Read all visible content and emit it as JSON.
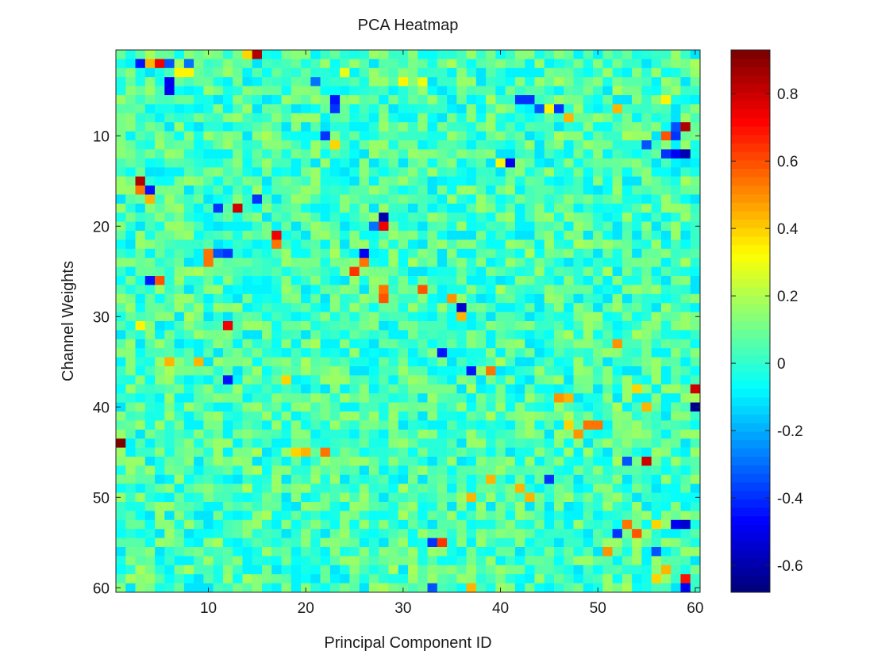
{
  "chart_data": {
    "type": "heatmap",
    "title": "PCA Heatmap",
    "xlabel": "Principal Component ID",
    "ylabel": "Channel Weights",
    "x_range": [
      1,
      60
    ],
    "y_range": [
      1,
      60
    ],
    "y_direction": "top-to-bottom",
    "x_ticks": [
      10,
      20,
      30,
      40,
      50,
      60
    ],
    "y_ticks": [
      10,
      20,
      30,
      40,
      50,
      60
    ],
    "colormap": "jet",
    "colorbar": {
      "position": "right",
      "range": [
        -0.68,
        0.93
      ],
      "levels": 64,
      "ticks": [
        -0.6,
        -0.4,
        -0.2,
        0,
        0.2,
        0.4,
        0.6,
        0.8
      ],
      "tick_labels": [
        "-0.6",
        "-0.4",
        "-0.2",
        "0",
        "0.2",
        "0.4",
        "0.6",
        "0.8"
      ]
    },
    "background_value_range": [
      -0.12,
      0.18
    ],
    "notable_cells": [
      {
        "x": 15,
        "y": 1,
        "value": 0.85
      },
      {
        "x": 14,
        "y": 1,
        "value": 0.4
      },
      {
        "x": 3,
        "y": 2,
        "value": -0.45
      },
      {
        "x": 4,
        "y": 2,
        "value": 0.45
      },
      {
        "x": 5,
        "y": 2,
        "value": 0.75
      },
      {
        "x": 6,
        "y": 2,
        "value": -0.35
      },
      {
        "x": 7,
        "y": 2,
        "value": 0.2
      },
      {
        "x": 8,
        "y": 2,
        "value": -0.3
      },
      {
        "x": 6,
        "y": 4,
        "value": -0.5
      },
      {
        "x": 7,
        "y": 3,
        "value": 0.35
      },
      {
        "x": 8,
        "y": 3,
        "value": 0.35
      },
      {
        "x": 6,
        "y": 5,
        "value": -0.5
      },
      {
        "x": 24,
        "y": 3,
        "value": 0.3
      },
      {
        "x": 30,
        "y": 4,
        "value": 0.35
      },
      {
        "x": 32,
        "y": 4,
        "value": 0.3
      },
      {
        "x": 21,
        "y": 4,
        "value": -0.3
      },
      {
        "x": 23,
        "y": 6,
        "value": -0.45
      },
      {
        "x": 23,
        "y": 7,
        "value": -0.4
      },
      {
        "x": 42,
        "y": 6,
        "value": -0.4
      },
      {
        "x": 43,
        "y": 6,
        "value": -0.4
      },
      {
        "x": 44,
        "y": 7,
        "value": -0.35
      },
      {
        "x": 45,
        "y": 7,
        "value": 0.35
      },
      {
        "x": 46,
        "y": 7,
        "value": -0.4
      },
      {
        "x": 47,
        "y": 8,
        "value": 0.45
      },
      {
        "x": 52,
        "y": 7,
        "value": 0.45
      },
      {
        "x": 57,
        "y": 6,
        "value": 0.35
      },
      {
        "x": 59,
        "y": 9,
        "value": 0.85
      },
      {
        "x": 58,
        "y": 9,
        "value": -0.35
      },
      {
        "x": 57,
        "y": 10,
        "value": 0.6
      },
      {
        "x": 58,
        "y": 10,
        "value": -0.4
      },
      {
        "x": 58,
        "y": 12,
        "value": -0.5
      },
      {
        "x": 59,
        "y": 12,
        "value": -0.6
      },
      {
        "x": 57,
        "y": 12,
        "value": -0.4
      },
      {
        "x": 55,
        "y": 11,
        "value": -0.35
      },
      {
        "x": 41,
        "y": 13,
        "value": -0.5
      },
      {
        "x": 40,
        "y": 13,
        "value": 0.35
      },
      {
        "x": 22,
        "y": 10,
        "value": -0.4
      },
      {
        "x": 23,
        "y": 11,
        "value": 0.4
      },
      {
        "x": 3,
        "y": 15,
        "value": 0.85
      },
      {
        "x": 3,
        "y": 16,
        "value": 0.55
      },
      {
        "x": 4,
        "y": 16,
        "value": -0.45
      },
      {
        "x": 4,
        "y": 17,
        "value": 0.45
      },
      {
        "x": 13,
        "y": 18,
        "value": 0.8
      },
      {
        "x": 11,
        "y": 18,
        "value": -0.4
      },
      {
        "x": 15,
        "y": 17,
        "value": -0.4
      },
      {
        "x": 28,
        "y": 19,
        "value": -0.6
      },
      {
        "x": 28,
        "y": 20,
        "value": 0.75
      },
      {
        "x": 27,
        "y": 20,
        "value": -0.3
      },
      {
        "x": 17,
        "y": 21,
        "value": 0.75
      },
      {
        "x": 17,
        "y": 22,
        "value": 0.55
      },
      {
        "x": 26,
        "y": 23,
        "value": -0.5
      },
      {
        "x": 26,
        "y": 24,
        "value": 0.55
      },
      {
        "x": 25,
        "y": 25,
        "value": 0.65
      },
      {
        "x": 10,
        "y": 23,
        "value": 0.55
      },
      {
        "x": 10,
        "y": 24,
        "value": 0.55
      },
      {
        "x": 11,
        "y": 23,
        "value": -0.35
      },
      {
        "x": 12,
        "y": 23,
        "value": -0.4
      },
      {
        "x": 4,
        "y": 26,
        "value": -0.45
      },
      {
        "x": 5,
        "y": 26,
        "value": 0.6
      },
      {
        "x": 28,
        "y": 27,
        "value": 0.55
      },
      {
        "x": 28,
        "y": 28,
        "value": 0.6
      },
      {
        "x": 32,
        "y": 27,
        "value": 0.6
      },
      {
        "x": 35,
        "y": 28,
        "value": 0.5
      },
      {
        "x": 36,
        "y": 29,
        "value": -0.55
      },
      {
        "x": 36,
        "y": 30,
        "value": 0.45
      },
      {
        "x": 12,
        "y": 31,
        "value": 0.75
      },
      {
        "x": 3,
        "y": 31,
        "value": 0.35
      },
      {
        "x": 34,
        "y": 34,
        "value": -0.45
      },
      {
        "x": 52,
        "y": 33,
        "value": 0.5
      },
      {
        "x": 6,
        "y": 35,
        "value": 0.45
      },
      {
        "x": 9,
        "y": 35,
        "value": 0.45
      },
      {
        "x": 12,
        "y": 37,
        "value": -0.45
      },
      {
        "x": 18,
        "y": 37,
        "value": 0.4
      },
      {
        "x": 37,
        "y": 36,
        "value": -0.45
      },
      {
        "x": 39,
        "y": 36,
        "value": 0.55
      },
      {
        "x": 60,
        "y": 38,
        "value": 0.8
      },
      {
        "x": 60,
        "y": 40,
        "value": -0.65
      },
      {
        "x": 54,
        "y": 38,
        "value": 0.4
      },
      {
        "x": 46,
        "y": 39,
        "value": 0.5
      },
      {
        "x": 47,
        "y": 39,
        "value": 0.45
      },
      {
        "x": 55,
        "y": 40,
        "value": 0.45
      },
      {
        "x": 49,
        "y": 42,
        "value": 0.55
      },
      {
        "x": 50,
        "y": 42,
        "value": 0.55
      },
      {
        "x": 48,
        "y": 43,
        "value": 0.5
      },
      {
        "x": 47,
        "y": 42,
        "value": 0.4
      },
      {
        "x": 1,
        "y": 44,
        "value": 0.93
      },
      {
        "x": 19,
        "y": 45,
        "value": 0.4
      },
      {
        "x": 20,
        "y": 45,
        "value": 0.45
      },
      {
        "x": 22,
        "y": 45,
        "value": 0.55
      },
      {
        "x": 55,
        "y": 46,
        "value": 0.8
      },
      {
        "x": 53,
        "y": 46,
        "value": -0.35
      },
      {
        "x": 39,
        "y": 48,
        "value": 0.45
      },
      {
        "x": 45,
        "y": 48,
        "value": -0.4
      },
      {
        "x": 42,
        "y": 49,
        "value": 0.45
      },
      {
        "x": 43,
        "y": 50,
        "value": 0.45
      },
      {
        "x": 37,
        "y": 50,
        "value": 0.45
      },
      {
        "x": 53,
        "y": 53,
        "value": 0.55
      },
      {
        "x": 54,
        "y": 54,
        "value": 0.6
      },
      {
        "x": 52,
        "y": 54,
        "value": -0.4
      },
      {
        "x": 58,
        "y": 53,
        "value": -0.5
      },
      {
        "x": 59,
        "y": 53,
        "value": -0.55
      },
      {
        "x": 56,
        "y": 53,
        "value": 0.4
      },
      {
        "x": 34,
        "y": 55,
        "value": 0.65
      },
      {
        "x": 33,
        "y": 55,
        "value": -0.4
      },
      {
        "x": 51,
        "y": 56,
        "value": 0.5
      },
      {
        "x": 56,
        "y": 56,
        "value": -0.35
      },
      {
        "x": 57,
        "y": 58,
        "value": 0.45
      },
      {
        "x": 59,
        "y": 59,
        "value": 0.7
      },
      {
        "x": 59,
        "y": 60,
        "value": -0.5
      },
      {
        "x": 37,
        "y": 60,
        "value": 0.45
      },
      {
        "x": 33,
        "y": 60,
        "value": -0.35
      },
      {
        "x": 56,
        "y": 59,
        "value": 0.4
      }
    ]
  }
}
